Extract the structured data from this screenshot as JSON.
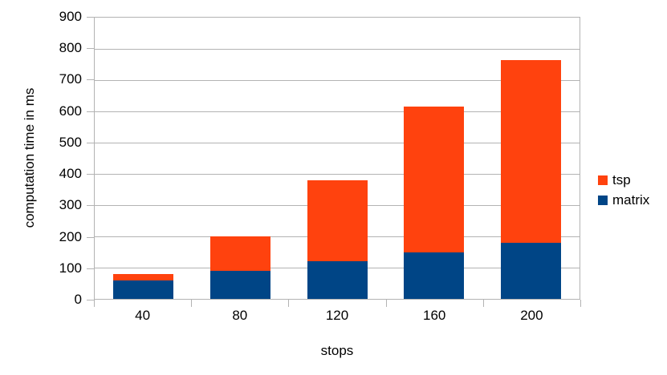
{
  "chart_data": {
    "type": "bar",
    "stacked": true,
    "title": "",
    "xlabel": "stops",
    "ylabel": "computation time in ms",
    "categories": [
      "40",
      "80",
      "120",
      "160",
      "200"
    ],
    "series": [
      {
        "name": "matrix",
        "color": "#004586",
        "values": [
          60,
          90,
          120,
          150,
          180
        ]
      },
      {
        "name": "tsp",
        "color": "#ff420e",
        "values": [
          20,
          110,
          260,
          465,
          585
        ]
      }
    ],
    "stack_totals": [
      80,
      200,
      380,
      615,
      765
    ],
    "ylim": [
      0,
      900
    ],
    "yticks": [
      0,
      100,
      200,
      300,
      400,
      500,
      600,
      700,
      800,
      900
    ],
    "grid": true,
    "legend_position": "right",
    "legend": [
      {
        "label": "tsp",
        "color": "#ff420e"
      },
      {
        "label": "matrix",
        "color": "#004586"
      }
    ],
    "colors": {
      "background": "#ffffff",
      "gridline": "#b3b3b3",
      "axis": "#b3b3b3",
      "text": "#000000"
    }
  }
}
